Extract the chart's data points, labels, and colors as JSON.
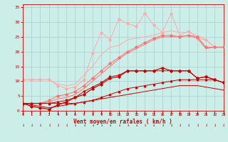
{
  "x": [
    0,
    1,
    2,
    3,
    4,
    5,
    6,
    7,
    8,
    9,
    10,
    11,
    12,
    13,
    14,
    15,
    16,
    17,
    18,
    19,
    20,
    21,
    22,
    23
  ],
  "line_dark1": [
    2.5,
    2.5,
    2.5,
    2.5,
    2.5,
    2.5,
    2.5,
    3.0,
    3.5,
    4.5,
    5.5,
    6.5,
    7.5,
    8.0,
    8.5,
    9.0,
    9.5,
    10.0,
    10.5,
    10.5,
    10.5,
    10.5,
    10.5,
    9.5
  ],
  "line_dark2": [
    2.5,
    1.5,
    1.0,
    0.5,
    2.0,
    3.0,
    4.5,
    5.5,
    7.5,
    9.0,
    11.0,
    11.5,
    13.5,
    13.5,
    13.5,
    13.5,
    14.5,
    13.5,
    13.5,
    13.5,
    11.0,
    11.5,
    10.5,
    9.5
  ],
  "line_dark3": [
    2.5,
    2.0,
    1.5,
    1.0,
    1.5,
    2.0,
    2.5,
    3.0,
    3.5,
    4.0,
    4.5,
    5.0,
    5.5,
    6.0,
    6.5,
    7.0,
    7.5,
    8.0,
    8.5,
    8.5,
    8.5,
    8.0,
    7.5,
    7.0
  ],
  "line_dark4": [
    2.5,
    2.5,
    2.5,
    2.5,
    3.0,
    3.5,
    4.5,
    6.5,
    8.0,
    9.5,
    11.5,
    12.0,
    13.5,
    13.5,
    13.5,
    13.5,
    13.5,
    13.5,
    13.5,
    13.5,
    11.0,
    11.5,
    10.5,
    9.5
  ],
  "line_med1": [
    2.5,
    2.5,
    2.5,
    3.5,
    5.0,
    5.5,
    6.5,
    8.5,
    11.0,
    13.5,
    16.0,
    18.0,
    20.0,
    21.5,
    23.0,
    24.5,
    25.5,
    25.5,
    25.0,
    25.5,
    25.0,
    21.5,
    21.5,
    21.5
  ],
  "line_med2": [
    2.5,
    2.5,
    2.5,
    3.0,
    4.0,
    4.5,
    5.5,
    7.5,
    10.0,
    12.5,
    15.0,
    17.5,
    19.5,
    21.0,
    22.5,
    24.0,
    25.0,
    25.0,
    25.0,
    25.5,
    24.5,
    21.0,
    21.5,
    21.5
  ],
  "line_light1": [
    10.5,
    10.5,
    10.5,
    10.5,
    8.5,
    7.5,
    8.0,
    10.5,
    19.5,
    26.5,
    24.0,
    31.0,
    29.5,
    28.5,
    33.0,
    29.0,
    26.5,
    33.0,
    25.5,
    27.0,
    24.5,
    24.0,
    21.5,
    21.5
  ],
  "line_light2": [
    10.5,
    10.5,
    10.5,
    10.5,
    9.0,
    8.5,
    9.0,
    12.0,
    15.0,
    19.0,
    21.5,
    22.0,
    24.0,
    24.5,
    25.0,
    25.5,
    26.5,
    27.0,
    26.5,
    26.5,
    25.5,
    24.0,
    21.5,
    21.5
  ],
  "colors": {
    "dark": "#cc0000",
    "med": "#ff7070",
    "light": "#ffaaaa"
  },
  "xlabel": "Vent moyen/en rafales ( km/h )",
  "yticks": [
    0,
    5,
    10,
    15,
    20,
    25,
    30,
    35
  ],
  "xlim": [
    0,
    23
  ],
  "ylim": [
    0,
    36
  ],
  "bg_color": "#cceee8",
  "grid_color": "#aacccc",
  "tick_color": "#cc0000",
  "label_color": "#cc0000"
}
